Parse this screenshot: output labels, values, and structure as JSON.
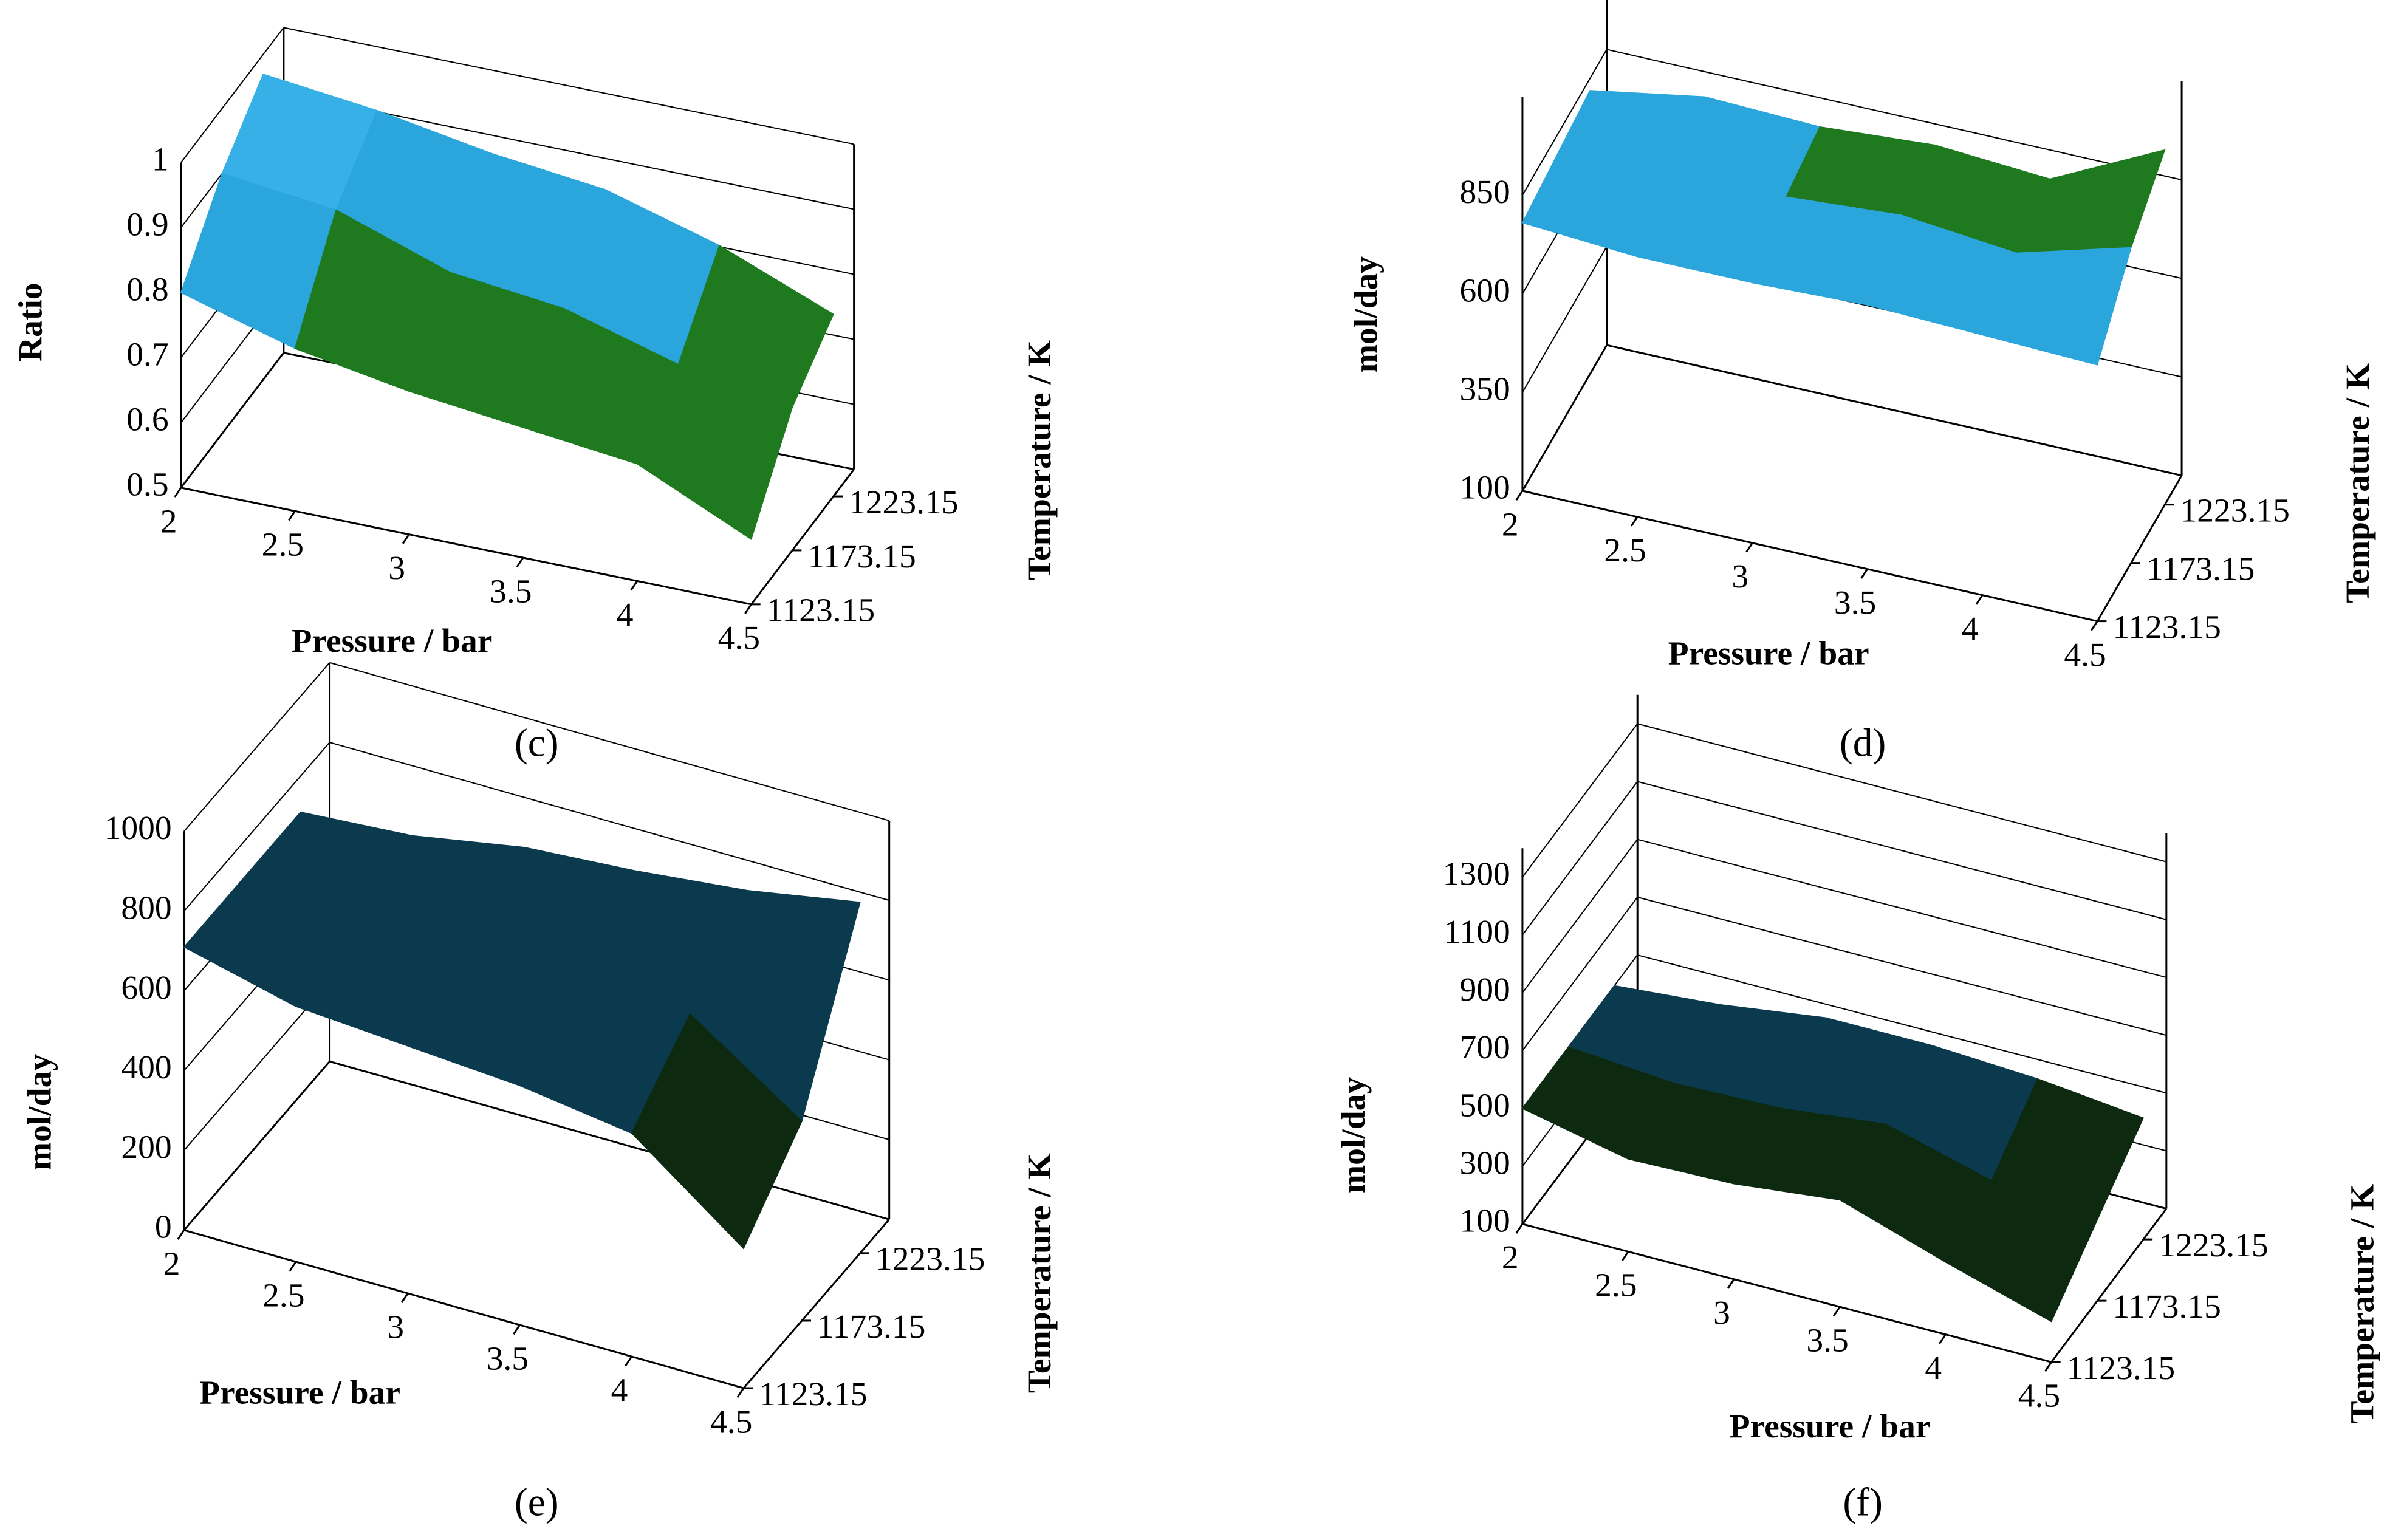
{
  "chart_data": [
    {
      "type": "surface",
      "label": "(c)",
      "x_title": "Pressure / bar",
      "y_title": "Ratio",
      "depth_title": "Temperature / K",
      "x": [
        2,
        2.5,
        3,
        3.5,
        4,
        4.5
      ],
      "xlim": [
        2,
        4.5
      ],
      "xticks": [
        2,
        2.5,
        3,
        3.5,
        4,
        4.5
      ],
      "depth": [
        1123.15,
        1173.15,
        1223.15
      ],
      "depthlim": [
        1123.15,
        1223.15
      ],
      "depthticks": [
        1123.15,
        1173.15,
        1223.15
      ],
      "ylim": [
        0.5,
        1
      ],
      "yticks": [
        0.5,
        0.6,
        0.7,
        0.8,
        0.9,
        1
      ],
      "z": [
        [
          0.8,
          0.75,
          0.72,
          0.7,
          0.68,
          0.6
        ],
        [
          0.9,
          0.88,
          0.82,
          0.8,
          0.75,
          0.72
        ],
        [
          0.97,
          0.95,
          0.92,
          0.9,
          0.85,
          0.78
        ]
      ],
      "band_colors": [
        "#1f7a1f",
        "#1f7a1f",
        "#1f7a1f",
        "#2ba6dc",
        "#36b0e6"
      ]
    },
    {
      "type": "surface",
      "label": "(d)",
      "x_title": "Pressure / bar",
      "y_title": "mol/day",
      "depth_title": "Temperature / K",
      "x": [
        2,
        2.5,
        3,
        3.5,
        4,
        4.5
      ],
      "xlim": [
        2,
        4.5
      ],
      "xticks": [
        2,
        2.5,
        3,
        3.5,
        4,
        4.5
      ],
      "depth": [
        1123.15,
        1173.15,
        1223.15
      ],
      "depthlim": [
        1123.15,
        1223.15
      ],
      "depthticks": [
        1123.15,
        1173.15,
        1223.15
      ],
      "ylim": [
        100,
        1100
      ],
      "yticks": [
        100,
        350,
        600,
        850
      ],
      "z": [
        [
          780,
          760,
          760,
          770,
          760,
          750
        ],
        [
          800,
          820,
          830,
          850,
          820,
          900
        ],
        [
          820,
          870,
          860,
          880,
          860,
          1000
        ]
      ],
      "band_colors": [
        "#1f7a1f",
        "#1f7a1f",
        "#2ba6dc",
        "#1f7a1f"
      ]
    },
    {
      "type": "surface",
      "label": "(e)",
      "x_title": "Pressure / bar",
      "y_title": "mol/day",
      "depth_title": "Temperature / K",
      "x": [
        2,
        2.5,
        3,
        3.5,
        4,
        4.5
      ],
      "xlim": [
        2,
        4.5
      ],
      "xticks": [
        2,
        2.5,
        3,
        3.5,
        4,
        4.5
      ],
      "depth": [
        1123.15,
        1173.15,
        1223.15
      ],
      "depthlim": [
        1123.15,
        1223.15
      ],
      "depthticks": [
        1123.15,
        1173.15,
        1223.15
      ],
      "ylim": [
        0,
        1000
      ],
      "yticks": [
        0,
        200,
        400,
        600,
        800,
        1000
      ],
      "z": [
        [
          710,
          640,
          620,
          600,
          560,
          350
        ],
        [
          710,
          700,
          690,
          680,
          690,
          500
        ],
        [
          710,
          730,
          780,
          800,
          830,
          880
        ]
      ],
      "band_colors": [
        "#b35418",
        "#0d2a10",
        "#0d2a10",
        "#0b3a4e",
        "#4a0a34"
      ]
    },
    {
      "type": "surface",
      "label": "(f)",
      "x_title": "Pressure / bar",
      "y_title": "mol/day",
      "depth_title": "Temperature / K",
      "x": [
        2,
        2.5,
        3,
        3.5,
        4,
        4.5
      ],
      "xlim": [
        2,
        4.5
      ],
      "xticks": [
        2,
        2.5,
        3,
        3.5,
        4,
        4.5
      ],
      "depth": [
        1123.15,
        1173.15,
        1223.15
      ],
      "depthlim": [
        1123.15,
        1223.15
      ],
      "depthticks": [
        1123.15,
        1173.15,
        1223.15
      ],
      "ylim": [
        100,
        1400
      ],
      "yticks": [
        100,
        300,
        500,
        700,
        900,
        1100,
        1300
      ],
      "z": [
        [
          500,
          420,
          430,
          470,
          350,
          240
        ],
        [
          500,
          470,
          480,
          520,
          420,
          380
        ],
        [
          500,
          530,
          580,
          580,
          560,
          520
        ]
      ],
      "band_colors": [
        "#8a3a12",
        "#0d2a10",
        "#0b3a4e",
        "#4a0a34",
        "#4a0a34",
        "#4a0a34",
        "#4a0a34"
      ]
    }
  ]
}
